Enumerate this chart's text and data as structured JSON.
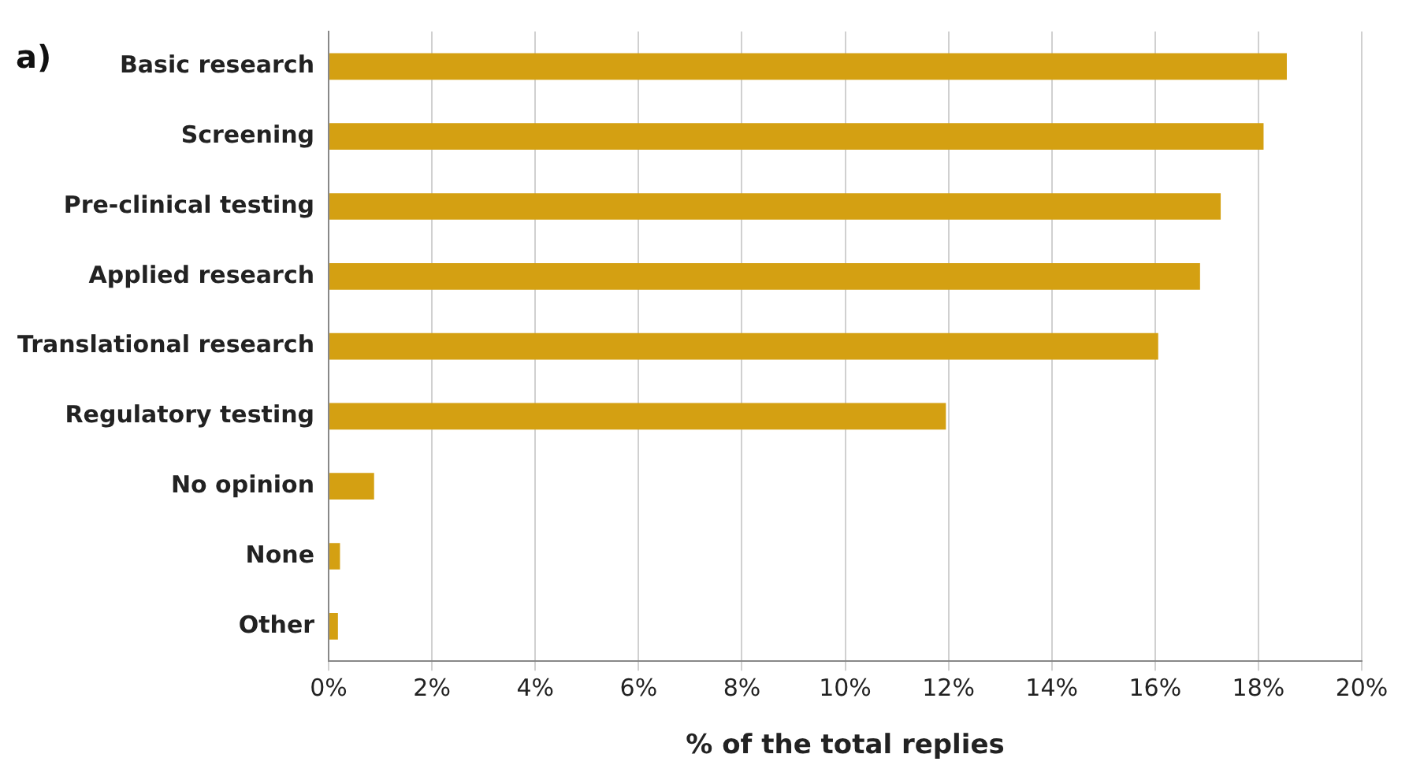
{
  "chart_data": {
    "type": "bar",
    "orientation": "horizontal",
    "xlabel": "% of the total replies",
    "annotations": [
      "a)"
    ],
    "categories": [
      "Basic research",
      "Screening",
      "Pre-clinical testing",
      "Applied research",
      "Translational research",
      "Regulatory testing",
      "No opinion",
      "None",
      "Other"
    ],
    "values": [
      18.55,
      18.1,
      17.27,
      16.87,
      16.06,
      11.95,
      0.88,
      0.22,
      0.18
    ],
    "color": "#d4a012",
    "xlim": [
      0,
      20
    ],
    "xticks": [
      {
        "value": 0,
        "label": "0%"
      },
      {
        "value": 2,
        "label": "2%"
      },
      {
        "value": 4,
        "label": "4%"
      },
      {
        "value": 6,
        "label": "6%"
      },
      {
        "value": 8,
        "label": "8%"
      },
      {
        "value": 10,
        "label": "10%"
      },
      {
        "value": 12,
        "label": "12%"
      },
      {
        "value": 14,
        "label": "14%"
      },
      {
        "value": 16,
        "label": "16%"
      },
      {
        "value": 18,
        "label": "18%"
      },
      {
        "value": 20,
        "label": "20%"
      }
    ],
    "grid": "x"
  }
}
